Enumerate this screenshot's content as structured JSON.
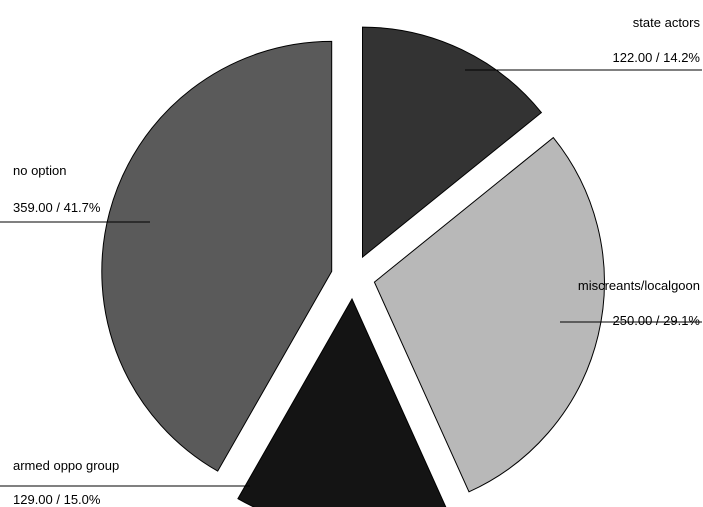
{
  "chart_data": {
    "type": "pie",
    "title": "",
    "slices": [
      {
        "label": "state actors",
        "value": 122.0,
        "percent": 14.2,
        "value_text": "122.00 / 14.2%",
        "color": "#333333"
      },
      {
        "label": "miscreants/localgoon",
        "value": 250.0,
        "percent": 29.1,
        "value_text": "250.00 / 29.1%",
        "color": "#b8b8b8"
      },
      {
        "label": "armed oppo group",
        "value": 129.0,
        "percent": 15.0,
        "value_text": "129.00 / 15.0%",
        "color": "#141414"
      },
      {
        "label": "no option",
        "value": 359.0,
        "percent": 41.7,
        "value_text": "359.00 / 41.7%",
        "color": "#5a5a5a"
      }
    ],
    "start_angle_deg": 0,
    "direction": "clockwise",
    "exploded": true,
    "legend": "none"
  }
}
